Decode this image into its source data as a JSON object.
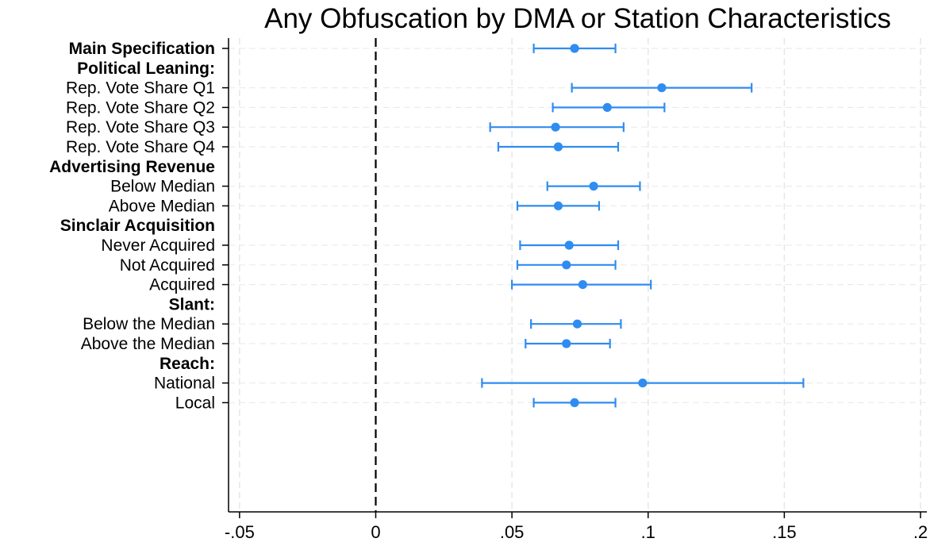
{
  "chart_data": {
    "type": "scatter",
    "subtype": "coefficient-plot",
    "title": "Any Obfuscation by DMA or Station Characteristics",
    "xlabel": "",
    "ylabel": "",
    "xlim": [
      -0.05,
      0.2
    ],
    "xticks": [
      -0.05,
      0,
      0.05,
      0.1,
      0.15,
      0.2
    ],
    "xtick_labels": [
      "-.05",
      "0",
      ".05",
      ".1",
      ".15",
      ".2"
    ],
    "grid": true,
    "reference_line": {
      "x": 0,
      "style": "dashed"
    },
    "series_color": "#2f8cf0",
    "rows": [
      {
        "label": "Main Specification",
        "kind": "header-estimate",
        "estimate": 0.073,
        "ci": [
          0.058,
          0.088
        ]
      },
      {
        "label": "Political Leaning:",
        "kind": "header"
      },
      {
        "label": "Rep. Vote Share Q1",
        "kind": "estimate",
        "estimate": 0.105,
        "ci": [
          0.072,
          0.138
        ]
      },
      {
        "label": "Rep. Vote Share Q2",
        "kind": "estimate",
        "estimate": 0.085,
        "ci": [
          0.065,
          0.106
        ]
      },
      {
        "label": "Rep. Vote Share Q3",
        "kind": "estimate",
        "estimate": 0.066,
        "ci": [
          0.042,
          0.091
        ]
      },
      {
        "label": "Rep. Vote Share Q4",
        "kind": "estimate",
        "estimate": 0.067,
        "ci": [
          0.045,
          0.089
        ]
      },
      {
        "label": "Advertising Revenue",
        "kind": "header"
      },
      {
        "label": "Below Median",
        "kind": "estimate",
        "estimate": 0.08,
        "ci": [
          0.063,
          0.097
        ]
      },
      {
        "label": "Above Median",
        "kind": "estimate",
        "estimate": 0.067,
        "ci": [
          0.052,
          0.082
        ]
      },
      {
        "label": "Sinclair Acquisition",
        "kind": "header"
      },
      {
        "label": "Never Acquired",
        "kind": "estimate",
        "estimate": 0.071,
        "ci": [
          0.053,
          0.089
        ]
      },
      {
        "label": "Not Acquired",
        "kind": "estimate",
        "estimate": 0.07,
        "ci": [
          0.052,
          0.088
        ]
      },
      {
        "label": "Acquired",
        "kind": "estimate",
        "estimate": 0.076,
        "ci": [
          0.05,
          0.101
        ]
      },
      {
        "label": "Slant:",
        "kind": "header"
      },
      {
        "label": "Below the Median",
        "kind": "estimate",
        "estimate": 0.074,
        "ci": [
          0.057,
          0.09
        ]
      },
      {
        "label": "Above the Median",
        "kind": "estimate",
        "estimate": 0.07,
        "ci": [
          0.055,
          0.086
        ]
      },
      {
        "label": "Reach:",
        "kind": "header"
      },
      {
        "label": "National",
        "kind": "estimate",
        "estimate": 0.098,
        "ci": [
          0.039,
          0.157
        ]
      },
      {
        "label": "Local",
        "kind": "estimate",
        "estimate": 0.073,
        "ci": [
          0.058,
          0.088
        ]
      }
    ]
  }
}
